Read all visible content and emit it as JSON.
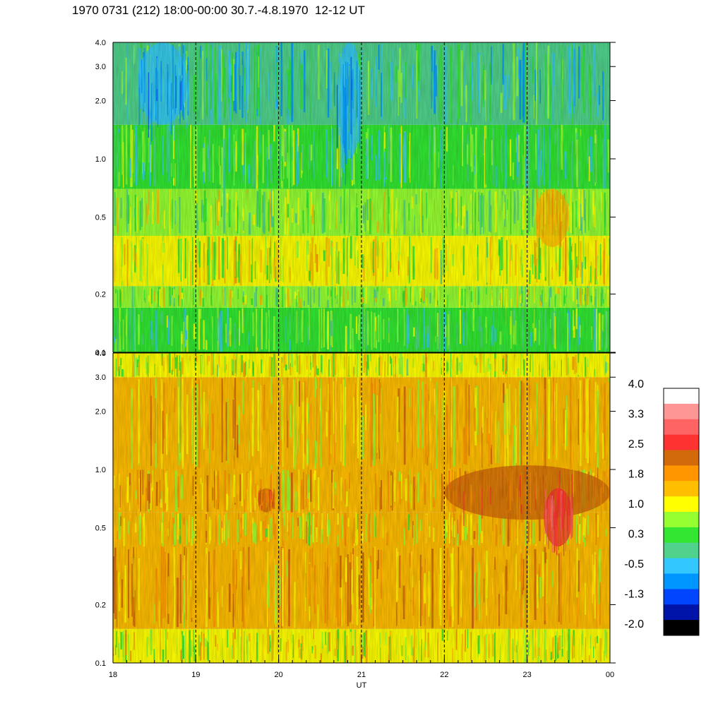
{
  "title": "1970 0731 (212) 18:00-00:00 30.7.-4.8.1970  12-12 UT",
  "chart_data": [
    {
      "type": "heatmap",
      "panel": "upper",
      "xlabel": "",
      "x_ticks": [
        "18",
        "19",
        "20",
        "21",
        "22",
        "23",
        "00"
      ],
      "y_scale": "log",
      "ylim": [
        0.1,
        4.0
      ],
      "y_ticks": [
        "0.1",
        "0.2",
        "0.5",
        "1.0",
        "2.0",
        "3.0",
        "4.0"
      ],
      "y_tick_values": [
        0.1,
        0.2,
        0.5,
        1.0,
        2.0,
        3.0,
        4.0
      ],
      "hour_markers": [
        19,
        20,
        21,
        22,
        23
      ],
      "rows": [
        {
          "y_range": [
            0.1,
            0.17
          ],
          "level": 0.5
        },
        {
          "y_range": [
            0.17,
            0.22
          ],
          "level": 0.75
        },
        {
          "y_range": [
            0.22,
            0.4
          ],
          "level": 1.0
        },
        {
          "y_range": [
            0.4,
            0.7
          ],
          "level": 0.7
        },
        {
          "y_range": [
            0.7,
            1.5
          ],
          "level": 0.4
        },
        {
          "y_range": [
            1.5,
            4.0
          ],
          "level": 0.05
        }
      ],
      "features": [
        {
          "x_range": [
            23.1,
            23.5
          ],
          "y_range": [
            0.35,
            0.7
          ],
          "level": 1.6
        },
        {
          "x_range": [
            20.7,
            21.0
          ],
          "y_range": [
            1.0,
            4.0
          ],
          "level": -0.5
        },
        {
          "x_range": [
            18.3,
            18.9
          ],
          "y_range": [
            1.5,
            4.0
          ],
          "level": -0.5
        }
      ]
    },
    {
      "type": "heatmap",
      "panel": "lower",
      "xlabel": "UT",
      "x_ticks": [
        "18",
        "19",
        "20",
        "21",
        "22",
        "23",
        "00"
      ],
      "y_scale": "log",
      "ylim": [
        0.1,
        4.0
      ],
      "y_ticks": [
        "0.1",
        "0.2",
        "0.5",
        "1.0",
        "2.0",
        "3.0",
        "4.0"
      ],
      "y_tick_values": [
        0.1,
        0.2,
        0.5,
        1.0,
        2.0,
        3.0,
        4.0
      ],
      "hour_markers": [
        19,
        20,
        21,
        22,
        23
      ],
      "rows": [
        {
          "y_range": [
            0.1,
            0.15
          ],
          "level": 1.1
        },
        {
          "y_range": [
            0.15,
            0.4
          ],
          "level": 1.7
        },
        {
          "y_range": [
            0.4,
            0.6
          ],
          "level": 1.4
        },
        {
          "y_range": [
            0.6,
            1.0
          ],
          "level": 1.6
        },
        {
          "y_range": [
            1.0,
            3.0
          ],
          "level": 1.5
        },
        {
          "y_range": [
            3.0,
            4.0
          ],
          "level": 1.0
        }
      ],
      "features": [
        {
          "x_range": [
            22.0,
            24.0
          ],
          "y_range": [
            0.55,
            1.05
          ],
          "level": 2.2
        },
        {
          "x_range": [
            23.2,
            23.55
          ],
          "y_range": [
            0.4,
            0.8
          ],
          "level": 2.8
        },
        {
          "x_range": [
            19.75,
            19.95
          ],
          "y_range": [
            0.6,
            0.8
          ],
          "level": 2.2
        }
      ]
    }
  ],
  "colorbar": {
    "labels": [
      "4.0",
      "3.3",
      "2.5",
      "1.8",
      "1.0",
      "0.3",
      "-0.5",
      "-1.3",
      "-2.0"
    ],
    "colors_top_to_bottom": [
      "#ffffff",
      "#ff9696",
      "#ff6464",
      "#ff3232",
      "#d2690a",
      "#ff9600",
      "#ffbe00",
      "#ffff00",
      "#96ff32",
      "#32e632",
      "#50d28c",
      "#32c8ff",
      "#0096ff",
      "#0046ff",
      "#0014aa",
      "#000000"
    ]
  }
}
